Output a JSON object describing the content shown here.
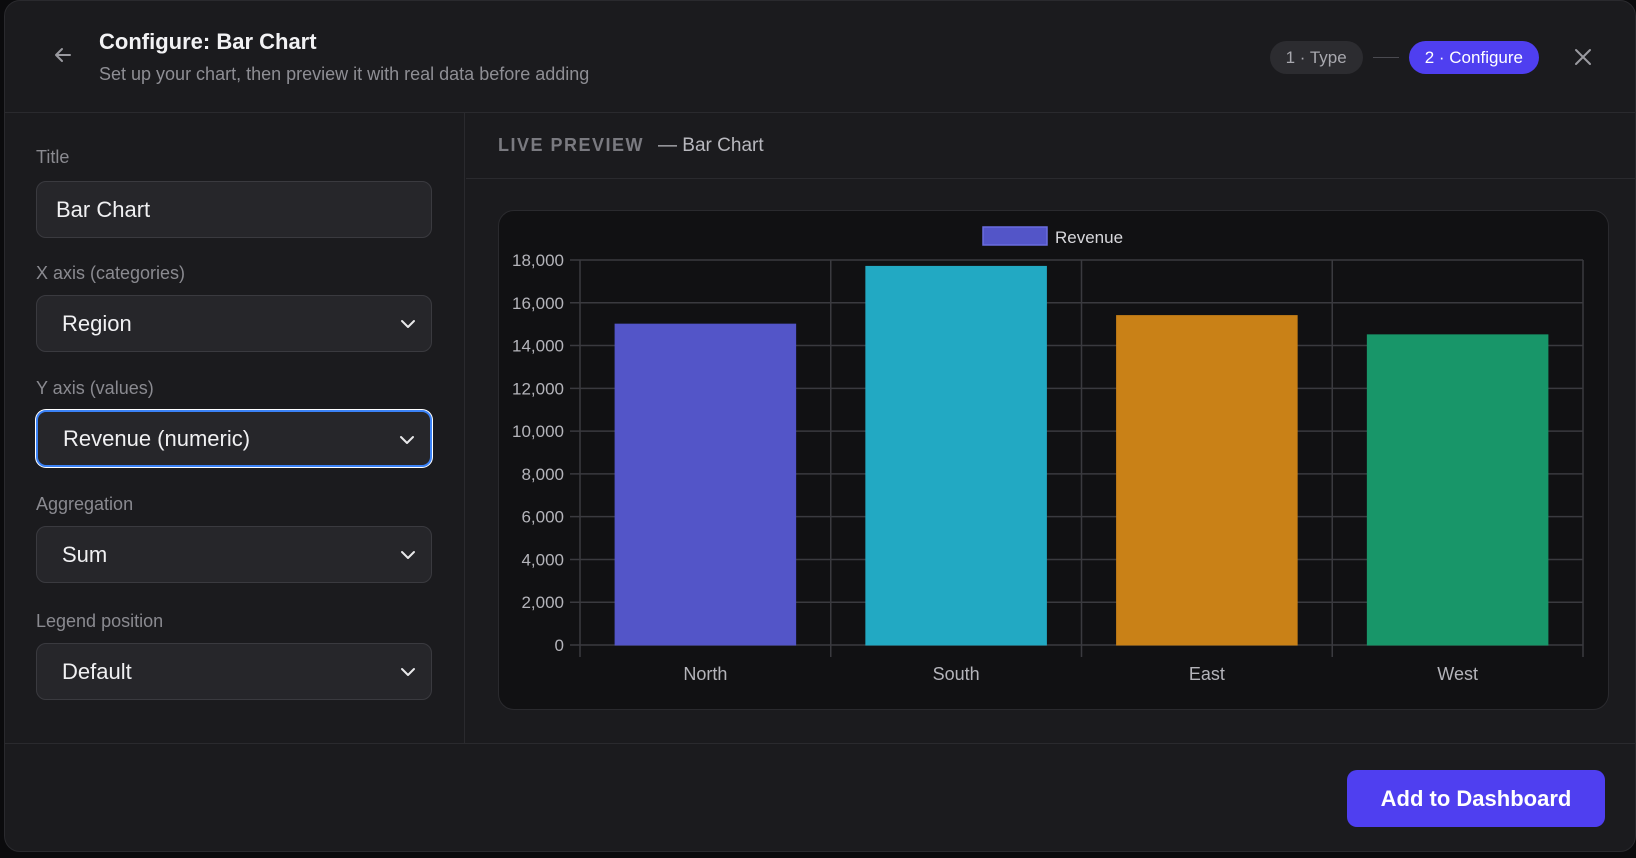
{
  "header": {
    "title": "Configure: Bar Chart",
    "subtitle": "Set up your chart, then preview it with real data before adding",
    "steps": [
      {
        "label": "1 · Type",
        "active": false
      },
      {
        "label": "2 · Configure",
        "active": true
      }
    ]
  },
  "form": {
    "title_label": "Title",
    "title_value": "Bar Chart",
    "x_axis_label": "X axis (categories)",
    "x_axis_value": "Region",
    "y_axis_label": "Y axis (values)",
    "y_axis_value": "Revenue (numeric)",
    "aggregation_label": "Aggregation",
    "aggregation_value": "Sum",
    "legend_label": "Legend position",
    "legend_value": "Default"
  },
  "preview": {
    "label": "LIVE PREVIEW",
    "subtitle": "— Bar Chart"
  },
  "footer": {
    "add_button": "Add to Dashboard"
  },
  "icons": {
    "back": "arrow-left-icon",
    "close": "close-icon",
    "chevron": "chevron-down-icon"
  },
  "colors": {
    "accent": "#4f3ff0",
    "focus": "#3b82f6"
  },
  "chart_data": {
    "type": "bar",
    "categories": [
      "North",
      "South",
      "East",
      "West"
    ],
    "series": [
      {
        "name": "Revenue",
        "values": [
          15000,
          17700,
          15400,
          14500
        ]
      }
    ],
    "bar_colors": [
      "#5355c8",
      "#22a9c3",
      "#c98117",
      "#189669"
    ],
    "legend_color": "#5355c8",
    "ylim": [
      0,
      18000
    ],
    "yticks": [
      0,
      2000,
      4000,
      6000,
      8000,
      10000,
      12000,
      14000,
      16000,
      18000
    ],
    "ytick_labels": [
      "0",
      "2,000",
      "4,000",
      "6,000",
      "8,000",
      "10,000",
      "12,000",
      "14,000",
      "16,000",
      "18,000"
    ],
    "legend_position": "top",
    "grid": true
  }
}
